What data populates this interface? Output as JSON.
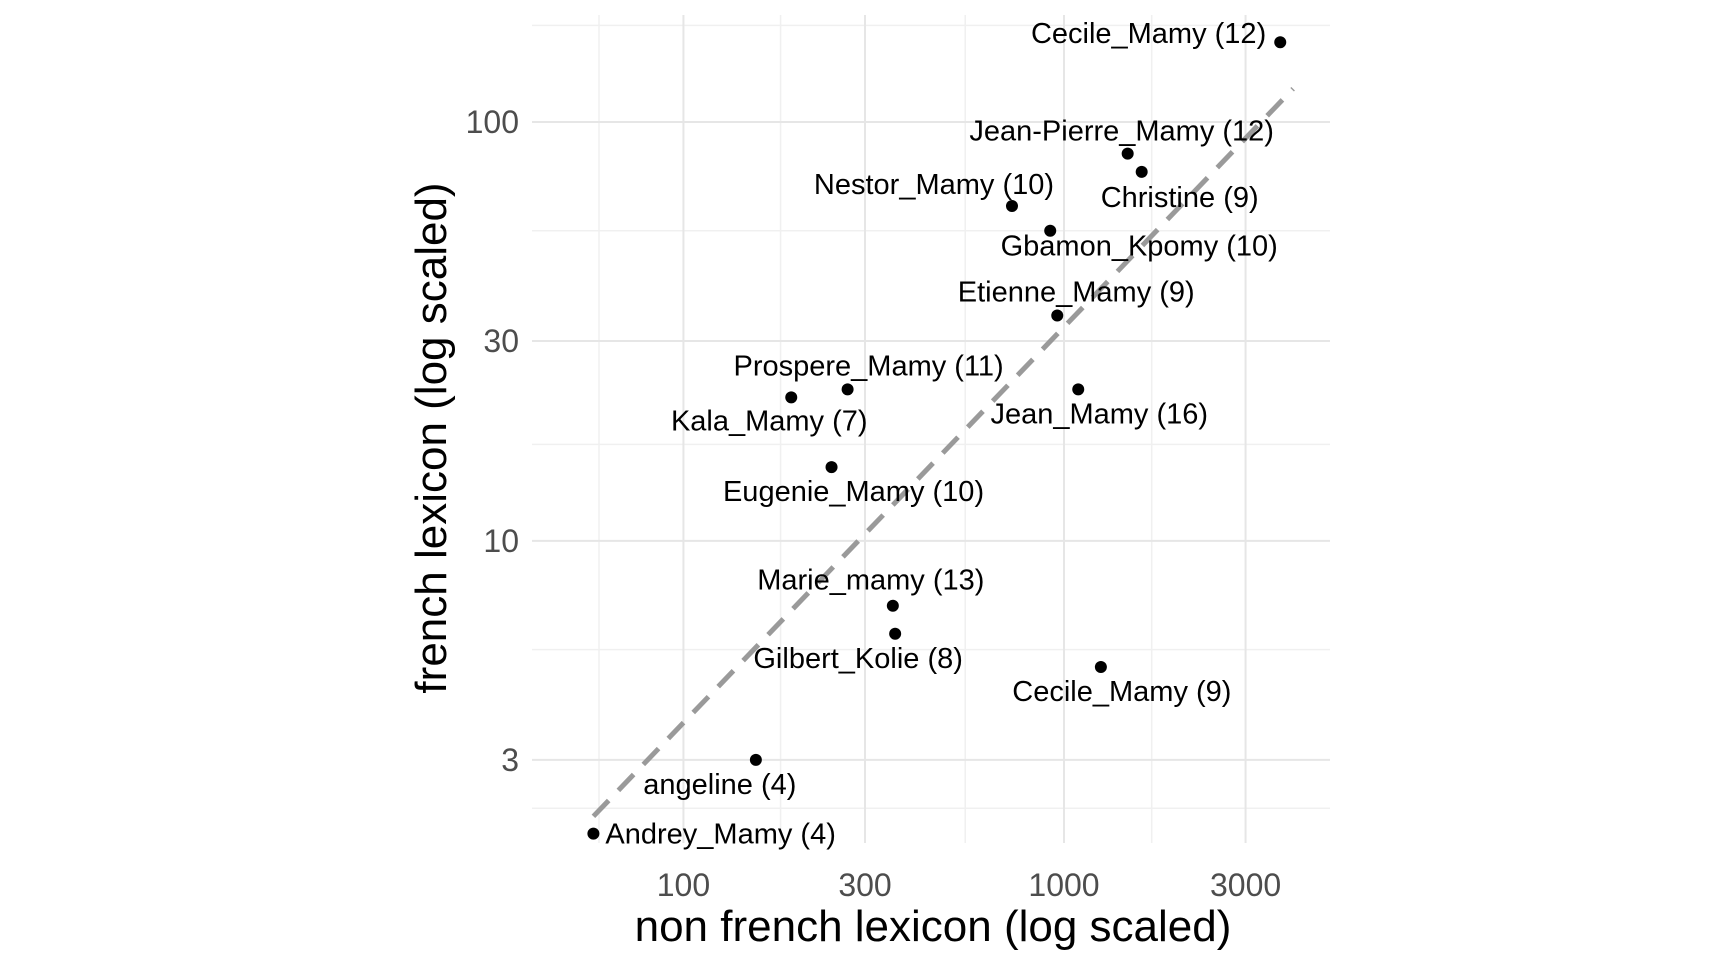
{
  "chart_data": {
    "type": "scatter",
    "title": "",
    "xlabel": "non french lexicon (log scaled)",
    "ylabel": "french lexicon (log scaled)",
    "x_scale": "log10",
    "y_scale": "log10",
    "xlim": [
      40,
      5000
    ],
    "ylim": [
      1.9,
      180
    ],
    "x_ticks": [
      100,
      300,
      1000,
      3000
    ],
    "x_tick_labels": [
      "100",
      "300",
      "1000",
      "3000"
    ],
    "y_ticks": [
      3,
      10,
      30,
      100
    ],
    "y_tick_labels": [
      "3",
      "10",
      "30",
      "100"
    ],
    "grid": true,
    "reference_line": {
      "style": "dashed",
      "color": "#9a9a9a",
      "slope": 1,
      "from": [
        58,
        2.2
      ],
      "to": [
        4000,
        120
      ]
    },
    "point_color": "#000000",
    "points": [
      {
        "label": "Cecile_Mamy (12)",
        "x": 3700,
        "y": 155
      },
      {
        "label": "Jean-Pierre_Mamy (12)",
        "x": 1470,
        "y": 84
      },
      {
        "label": "Christine (9)",
        "x": 1600,
        "y": 76
      },
      {
        "label": "Nestor_Mamy (10)",
        "x": 730,
        "y": 63
      },
      {
        "label": "Gbamon_Kpomy (10)",
        "x": 920,
        "y": 55
      },
      {
        "label": "Etienne_Mamy (9)",
        "x": 960,
        "y": 34.5
      },
      {
        "label": "Prospere_Mamy (11)",
        "x": 270,
        "y": 23
      },
      {
        "label": "Kala_Mamy (7)",
        "x": 192,
        "y": 22
      },
      {
        "label": "Jean_Mamy (16)",
        "x": 1090,
        "y": 23
      },
      {
        "label": "Eugenie_Mamy (10)",
        "x": 245,
        "y": 15
      },
      {
        "label": "Marie_mamy (13)",
        "x": 355,
        "y": 7
      },
      {
        "label": "Gilbert_Kolie (8)",
        "x": 360,
        "y": 6
      },
      {
        "label": "Cecile_Mamy (9)",
        "x": 1250,
        "y": 5
      },
      {
        "label": "angeline (4)",
        "x": 155,
        "y": 3
      },
      {
        "label": "Andrey_Mamy (4)",
        "x": 58,
        "y": 2
      }
    ]
  }
}
